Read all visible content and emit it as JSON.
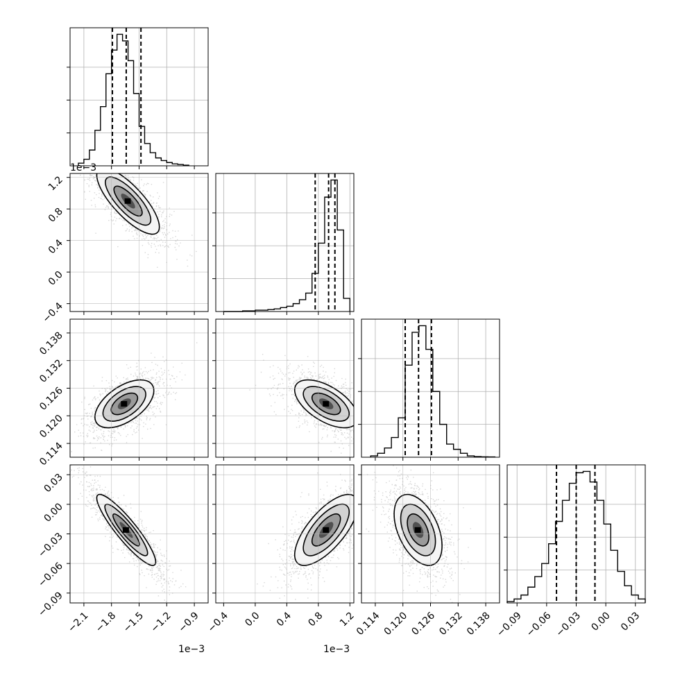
{
  "chart_data": {
    "type": "corner",
    "grid": true,
    "parameters": [
      {
        "ticks": [
          -2.1,
          -1.8,
          -1.5,
          -1.2,
          -0.9
        ],
        "tick_labels": [
          "−2.1",
          "−1.8",
          "−1.5",
          "−1.2",
          "−0.9"
        ],
        "range": [
          -2.25,
          -0.75
        ],
        "offset": "1e−3"
      },
      {
        "ticks": [
          -0.4,
          0.0,
          0.4,
          0.8,
          1.2
        ],
        "tick_labels": [
          "−0.4",
          "0.0",
          "0.4",
          "0.8",
          "1.2"
        ],
        "range": [
          -0.5,
          1.25
        ],
        "offset": "1e−3"
      },
      {
        "ticks": [
          0.114,
          0.12,
          0.126,
          0.132,
          0.138
        ],
        "tick_labels": [
          "0.114",
          "0.120",
          "0.126",
          "0.132",
          "0.138"
        ],
        "range": [
          0.111,
          0.141
        ],
        "offset": ""
      },
      {
        "ticks": [
          -0.09,
          -0.06,
          -0.03,
          0.0,
          0.03
        ],
        "tick_labels": [
          "−0.09",
          "−0.06",
          "−0.03",
          "0.00",
          "0.03"
        ],
        "range": [
          -0.1,
          0.04
        ],
        "offset": ""
      }
    ],
    "histograms": [
      {
        "bins": [
          -2.16,
          -2.1,
          -2.04,
          -1.98,
          -1.92,
          -1.86,
          -1.8,
          -1.74,
          -1.68,
          -1.62,
          -1.56,
          -1.5,
          -1.44,
          -1.38,
          -1.32,
          -1.26,
          -1.2,
          -1.14,
          -1.08,
          -1.02,
          -0.96
        ],
        "counts": [
          0.02,
          0.05,
          0.12,
          0.27,
          0.45,
          0.7,
          0.88,
          1.0,
          0.95,
          0.8,
          0.55,
          0.3,
          0.17,
          0.1,
          0.06,
          0.04,
          0.025,
          0.015,
          0.01,
          0.005
        ],
        "quantiles": [
          -1.79,
          -1.64,
          -1.48
        ]
      },
      {
        "bins": [
          -0.4,
          -0.32,
          -0.24,
          -0.16,
          -0.08,
          0.0,
          0.08,
          0.16,
          0.24,
          0.32,
          0.4,
          0.48,
          0.56,
          0.64,
          0.72,
          0.8,
          0.88,
          0.96,
          1.04,
          1.12,
          1.2
        ],
        "counts": [
          0.0,
          0.0,
          0.0,
          0.005,
          0.005,
          0.01,
          0.01,
          0.015,
          0.02,
          0.03,
          0.04,
          0.06,
          0.09,
          0.14,
          0.29,
          0.52,
          0.87,
          1.0,
          0.62,
          0.1
        ],
        "quantiles": [
          0.76,
          0.93,
          1.01
        ]
      },
      {
        "bins": [
          0.113,
          0.1145,
          0.116,
          0.1175,
          0.119,
          0.1205,
          0.122,
          0.1235,
          0.125,
          0.1265,
          0.128,
          0.1295,
          0.131,
          0.1325,
          0.134,
          0.1355,
          0.137,
          0.1385,
          0.14
        ],
        "counts": [
          0.01,
          0.03,
          0.07,
          0.15,
          0.3,
          0.7,
          0.95,
          1.0,
          0.82,
          0.5,
          0.25,
          0.1,
          0.06,
          0.03,
          0.01,
          0.005,
          0.003,
          0.002
        ],
        "quantiles": [
          0.1205,
          0.1234,
          0.1262
        ]
      },
      {
        "bins": [
          -0.1,
          -0.093,
          -0.086,
          -0.079,
          -0.072,
          -0.065,
          -0.058,
          -0.051,
          -0.044,
          -0.037,
          -0.03,
          -0.023,
          -0.016,
          -0.009,
          -0.002,
          0.005,
          0.012,
          0.019,
          0.026,
          0.033,
          0.04
        ],
        "counts": [
          0.01,
          0.03,
          0.06,
          0.12,
          0.2,
          0.3,
          0.45,
          0.62,
          0.78,
          0.91,
          0.99,
          1.0,
          0.92,
          0.78,
          0.6,
          0.4,
          0.24,
          0.13,
          0.06,
          0.03
        ],
        "quantiles": [
          -0.05,
          -0.03,
          -0.011
        ]
      }
    ],
    "pairs": [
      {
        "x": 0,
        "y": 1,
        "mean": [
          -1.62,
          0.9
        ],
        "sd": [
          0.17,
          0.21
        ],
        "rho": -0.78
      },
      {
        "x": 0,
        "y": 2,
        "mean": [
          -1.66,
          0.1226
        ],
        "sd": [
          0.16,
          0.0026
        ],
        "rho": 0.55
      },
      {
        "x": 1,
        "y": 2,
        "mean": [
          0.9,
          0.1226
        ],
        "sd": [
          0.2,
          0.0026
        ],
        "rho": -0.58
      },
      {
        "x": 0,
        "y": 3,
        "mean": [
          -1.64,
          -0.026
        ],
        "sd": [
          0.16,
          0.018
        ],
        "rho": -0.9
      },
      {
        "x": 1,
        "y": 3,
        "mean": [
          0.9,
          -0.026
        ],
        "sd": [
          0.2,
          0.018
        ],
        "rho": 0.7
      },
      {
        "x": 2,
        "y": 3,
        "mean": [
          0.1233,
          -0.026
        ],
        "sd": [
          0.0026,
          0.018
        ],
        "rho": -0.45
      }
    ]
  }
}
